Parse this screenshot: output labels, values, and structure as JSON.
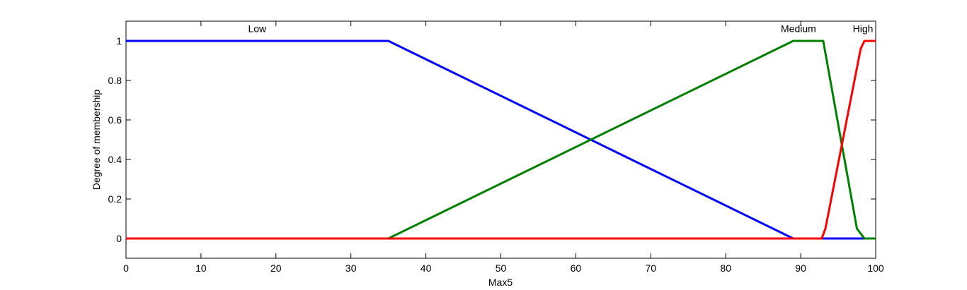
{
  "chart_data": {
    "type": "line",
    "title": "",
    "xlabel": "Max5",
    "ylabel": "Degree of membership",
    "xlim": [
      0,
      100
    ],
    "ylim": [
      -0.1,
      1.1
    ],
    "xticks": [
      0,
      10,
      20,
      30,
      40,
      50,
      60,
      70,
      80,
      90,
      100
    ],
    "yticks": [
      0,
      0.2,
      0.4,
      0.6,
      0.8,
      1
    ],
    "ytick_labels": [
      "0",
      "0.2",
      "0.4",
      "0.6",
      "0.8",
      "1"
    ],
    "grid": false,
    "legend": "none",
    "series": [
      {
        "name": "Low",
        "color": "#0000ff",
        "points": [
          [
            0,
            1
          ],
          [
            35,
            1
          ],
          [
            89,
            0
          ],
          [
            100,
            0
          ]
        ]
      },
      {
        "name": "Medium",
        "color": "#008000",
        "points": [
          [
            0,
            0
          ],
          [
            35,
            0
          ],
          [
            89,
            1
          ],
          [
            93,
            1
          ],
          [
            97.5,
            0.05
          ],
          [
            98.5,
            0
          ],
          [
            100,
            0
          ]
        ]
      },
      {
        "name": "High",
        "color": "#ff0000",
        "points": [
          [
            0,
            0
          ],
          [
            92.8,
            0
          ],
          [
            93.3,
            0.05
          ],
          [
            98,
            0.96
          ],
          [
            98.5,
            1
          ],
          [
            100,
            1
          ]
        ]
      }
    ],
    "annotations": [
      {
        "text": "Low",
        "x": 17.5,
        "y": 1.03,
        "series": "Low"
      },
      {
        "text": "Medium",
        "x": 89.7,
        "y": 1.03,
        "series": "Medium"
      },
      {
        "text": "High",
        "x": 98.3,
        "y": 1.03,
        "series": "High"
      }
    ]
  }
}
